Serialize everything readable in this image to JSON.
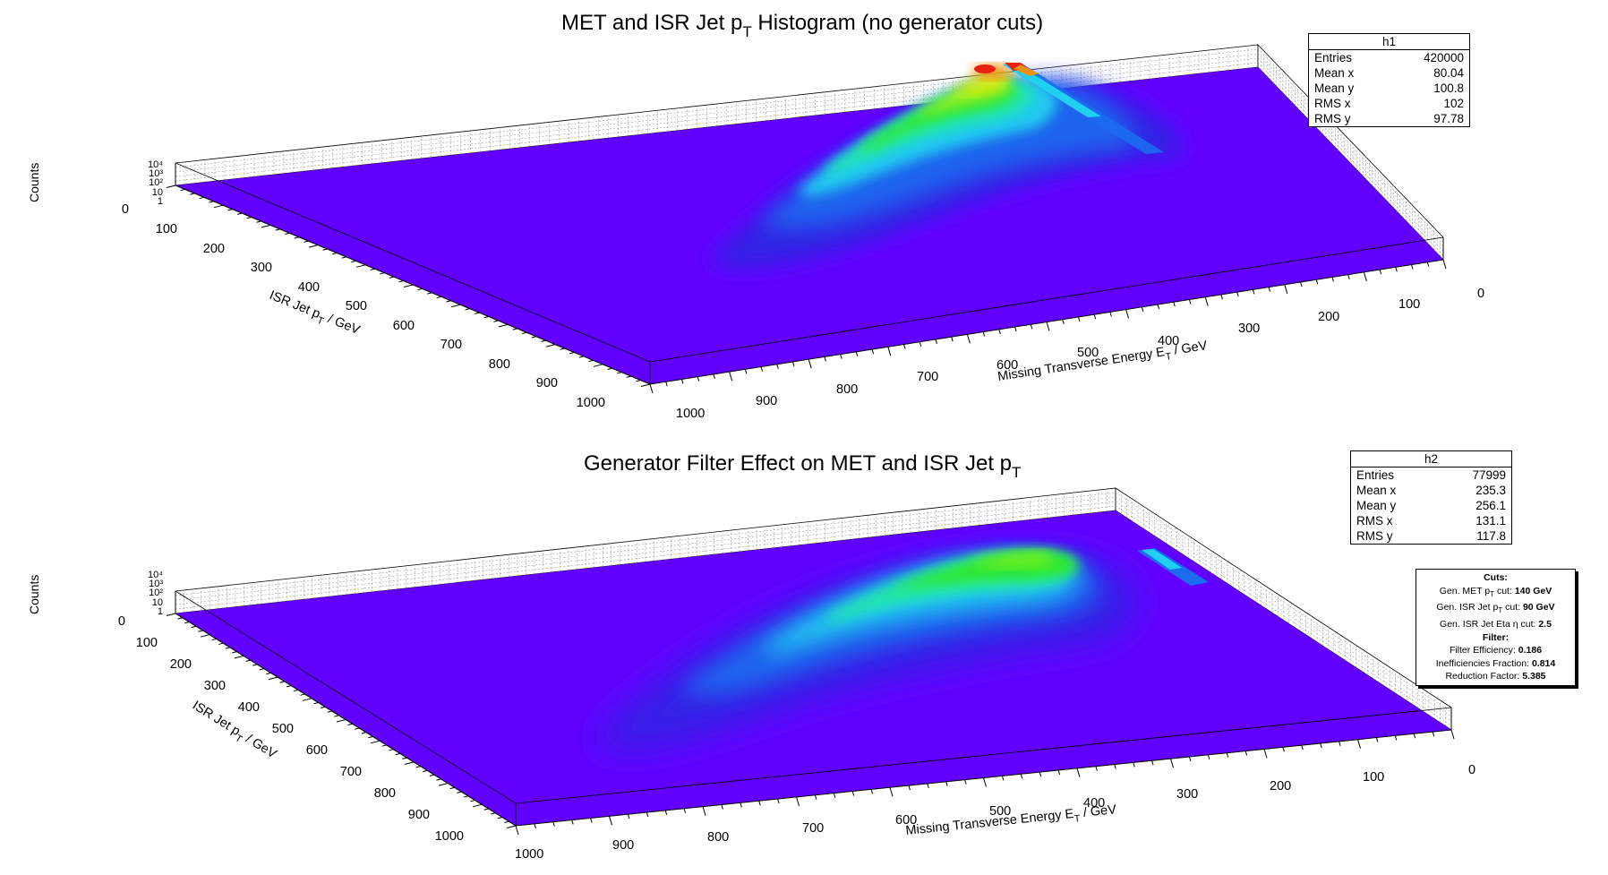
{
  "chart_data": [
    {
      "type": "heatmap",
      "title": "MET and ISR Jet p",
      "title_sub": "T",
      "title_suffix": " Histogram (no generator cuts)",
      "zlabel": "Counts",
      "z_ticks": [
        "10⁴",
        "10³",
        "10²",
        "10",
        "1"
      ],
      "y_axis_label": "ISR Jet p",
      "y_axis_sub": "T",
      "y_axis_suffix": " / GeV",
      "x_axis_label": "Missing Transverse Energy E",
      "x_axis_sub": "T",
      "x_axis_suffix": " / GeV",
      "y_ticks": [
        "0",
        "100",
        "200",
        "300",
        "400",
        "500",
        "600",
        "700",
        "800",
        "900",
        "1000"
      ],
      "x_ticks": [
        "0",
        "100",
        "200",
        "300",
        "400",
        "500",
        "600",
        "700",
        "800",
        "900",
        "1000"
      ],
      "xlim": [
        0,
        1000
      ],
      "ylim": [
        0,
        1000
      ],
      "zscale": "log",
      "stats": {
        "name": "h1",
        "rows": [
          {
            "label": "Entries",
            "value": "420000"
          },
          {
            "label": "Mean x",
            "value": "80.04"
          },
          {
            "label": "Mean y",
            "value": "100.8"
          },
          {
            "label": "RMS x",
            "value": "102"
          },
          {
            "label": "RMS y",
            "value": "97.78"
          }
        ]
      }
    },
    {
      "type": "heatmap",
      "title": "Generator Filter Effect on MET and ISR Jet p",
      "title_sub": "T",
      "title_suffix": "",
      "zlabel": "Counts",
      "z_ticks": [
        "10⁴",
        "10³",
        "10²",
        "10",
        "1"
      ],
      "y_axis_label": "ISR Jet p",
      "y_axis_sub": "T",
      "y_axis_suffix": " / GeV",
      "x_axis_label": "Missing Transverse Energy E",
      "x_axis_sub": "T",
      "x_axis_suffix": " / GeV",
      "y_ticks": [
        "0",
        "100",
        "200",
        "300",
        "400",
        "500",
        "600",
        "700",
        "800",
        "900",
        "1000"
      ],
      "x_ticks": [
        "0",
        "100",
        "200",
        "300",
        "400",
        "500",
        "600",
        "700",
        "800",
        "900",
        "1000"
      ],
      "xlim": [
        0,
        1000
      ],
      "ylim": [
        0,
        1000
      ],
      "zscale": "log",
      "stats": {
        "name": "h2",
        "rows": [
          {
            "label": "Entries",
            "value": "77999"
          },
          {
            "label": "Mean x",
            "value": "235.3"
          },
          {
            "label": "Mean y",
            "value": "256.1"
          },
          {
            "label": "RMS x",
            "value": "131.1"
          },
          {
            "label": "RMS y",
            "value": "117.8"
          }
        ]
      },
      "cuts": {
        "heading": "Cuts:",
        "met_label": "Gen. MET p",
        "met_sub": "T",
        "met_mid": " cut: ",
        "met_value": "140 GeV",
        "isr_label": "Gen. ISR Jet p",
        "isr_sub": "T",
        "isr_mid": " cut: ",
        "isr_value": "90 GeV",
        "eta_label": "Gen. ISR Jet Eta η cut: ",
        "eta_value": "2.5",
        "filter_heading": "Filter:",
        "eff_label": "Filter Efficiency: ",
        "eff_value": "0.186",
        "ineff_label": "Inefficiencies Fraction: ",
        "ineff_value": "0.814",
        "red_label": "Reduction Factor: ",
        "red_value": "5.385"
      }
    }
  ],
  "colors": {
    "floor": "#6200ff",
    "dark_blue": "#2a2ae0",
    "blue": "#1c6cf0",
    "cyan": "#20d0f0",
    "teal": "#20e8a8",
    "green": "#2ee82e",
    "lime": "#a8f020",
    "yellow": "#f0ea10",
    "orange": "#f09010",
    "red": "#e82010"
  }
}
